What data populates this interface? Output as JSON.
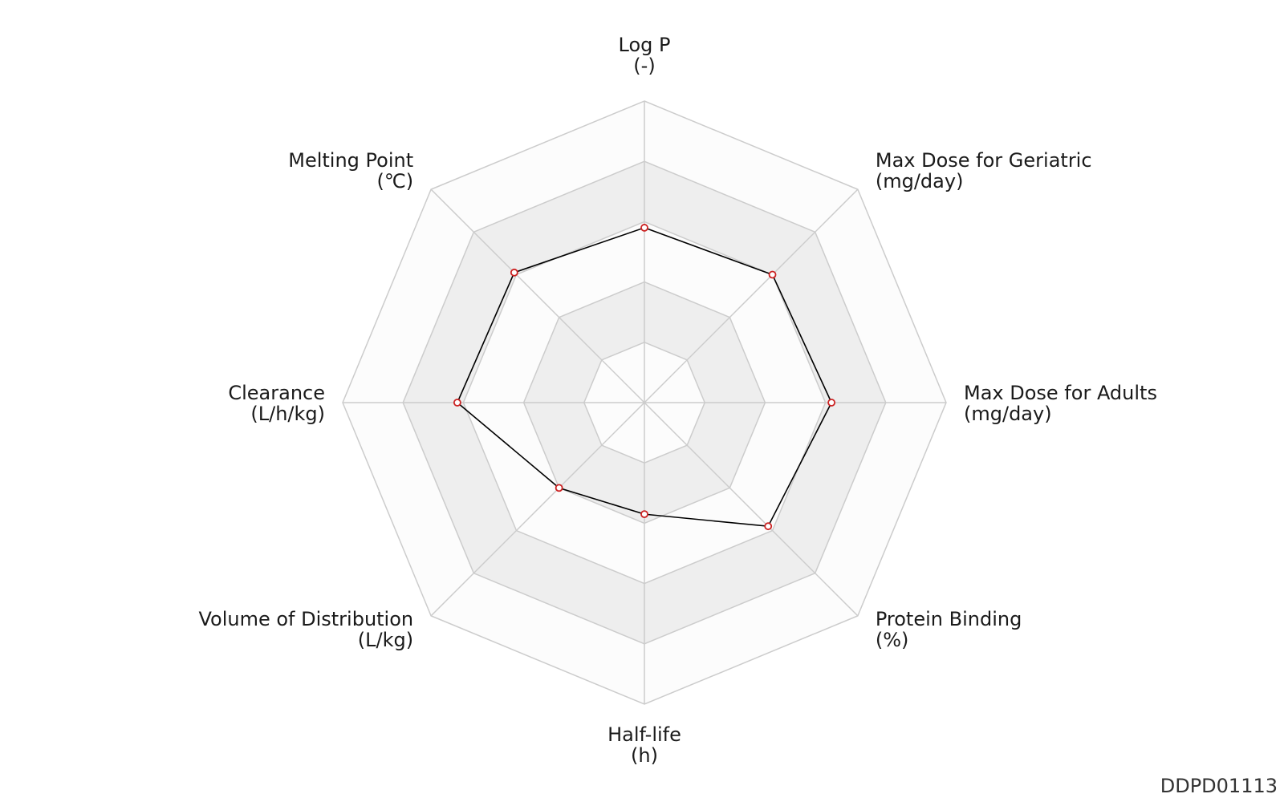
{
  "chart_data": {
    "type": "radar",
    "axes": [
      {
        "name": "Log P",
        "unit": "(-)"
      },
      {
        "name": "Max Dose for Geriatric",
        "unit": "(mg/day)"
      },
      {
        "name": "Max Dose for Adults",
        "unit": "(mg/day)"
      },
      {
        "name": "Protein Binding",
        "unit": "(%)"
      },
      {
        "name": "Half-life",
        "unit": "(h)"
      },
      {
        "name": "Volume of Distribution",
        "unit": "(L/kg)"
      },
      {
        "name": "Clearance",
        "unit": "(L/h/kg)"
      },
      {
        "name": "Melting Point",
        "unit": "(℃)"
      }
    ],
    "series": [
      {
        "values": [
          0.58,
          0.6,
          0.62,
          0.58,
          0.37,
          0.4,
          0.62,
          0.61
        ]
      }
    ],
    "rings": 5,
    "range": [
      0,
      1
    ],
    "line_color": "#000000",
    "marker_color": "#cc2222",
    "band_colors": [
      "#ffffff",
      "#eeeeee"
    ],
    "grid_color": "#cccccc"
  },
  "identifier": "DDPD01113"
}
